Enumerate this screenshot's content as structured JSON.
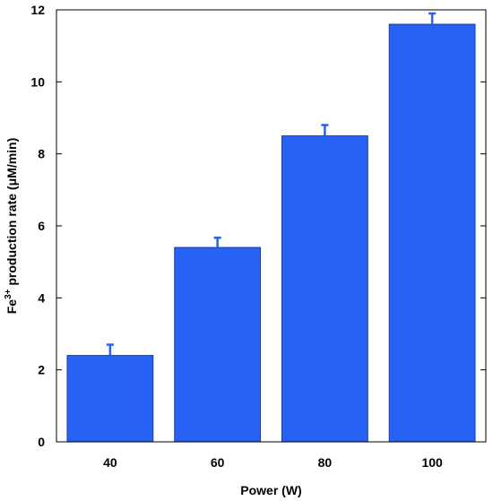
{
  "chart_data": {
    "type": "bar",
    "categories": [
      "40",
      "60",
      "80",
      "100"
    ],
    "values": [
      2.4,
      5.4,
      8.5,
      11.6
    ],
    "error_plus": [
      0.3,
      0.27,
      0.3,
      0.3
    ],
    "xlabel": "Power (W)",
    "ylabel": {
      "prefix": "Fe",
      "superscript": "3+",
      "suffix": " production rate (μM/min)"
    },
    "ylim": [
      0,
      12
    ],
    "yticks": [
      "0",
      "2",
      "4",
      "6",
      "8",
      "10",
      "12"
    ],
    "grid": false,
    "legend": "none",
    "colors": {
      "bar_fill": "#2762f5",
      "bar_stroke": "#1d3f9a",
      "error_bar": "#2762f5",
      "axis": "#000000"
    }
  }
}
